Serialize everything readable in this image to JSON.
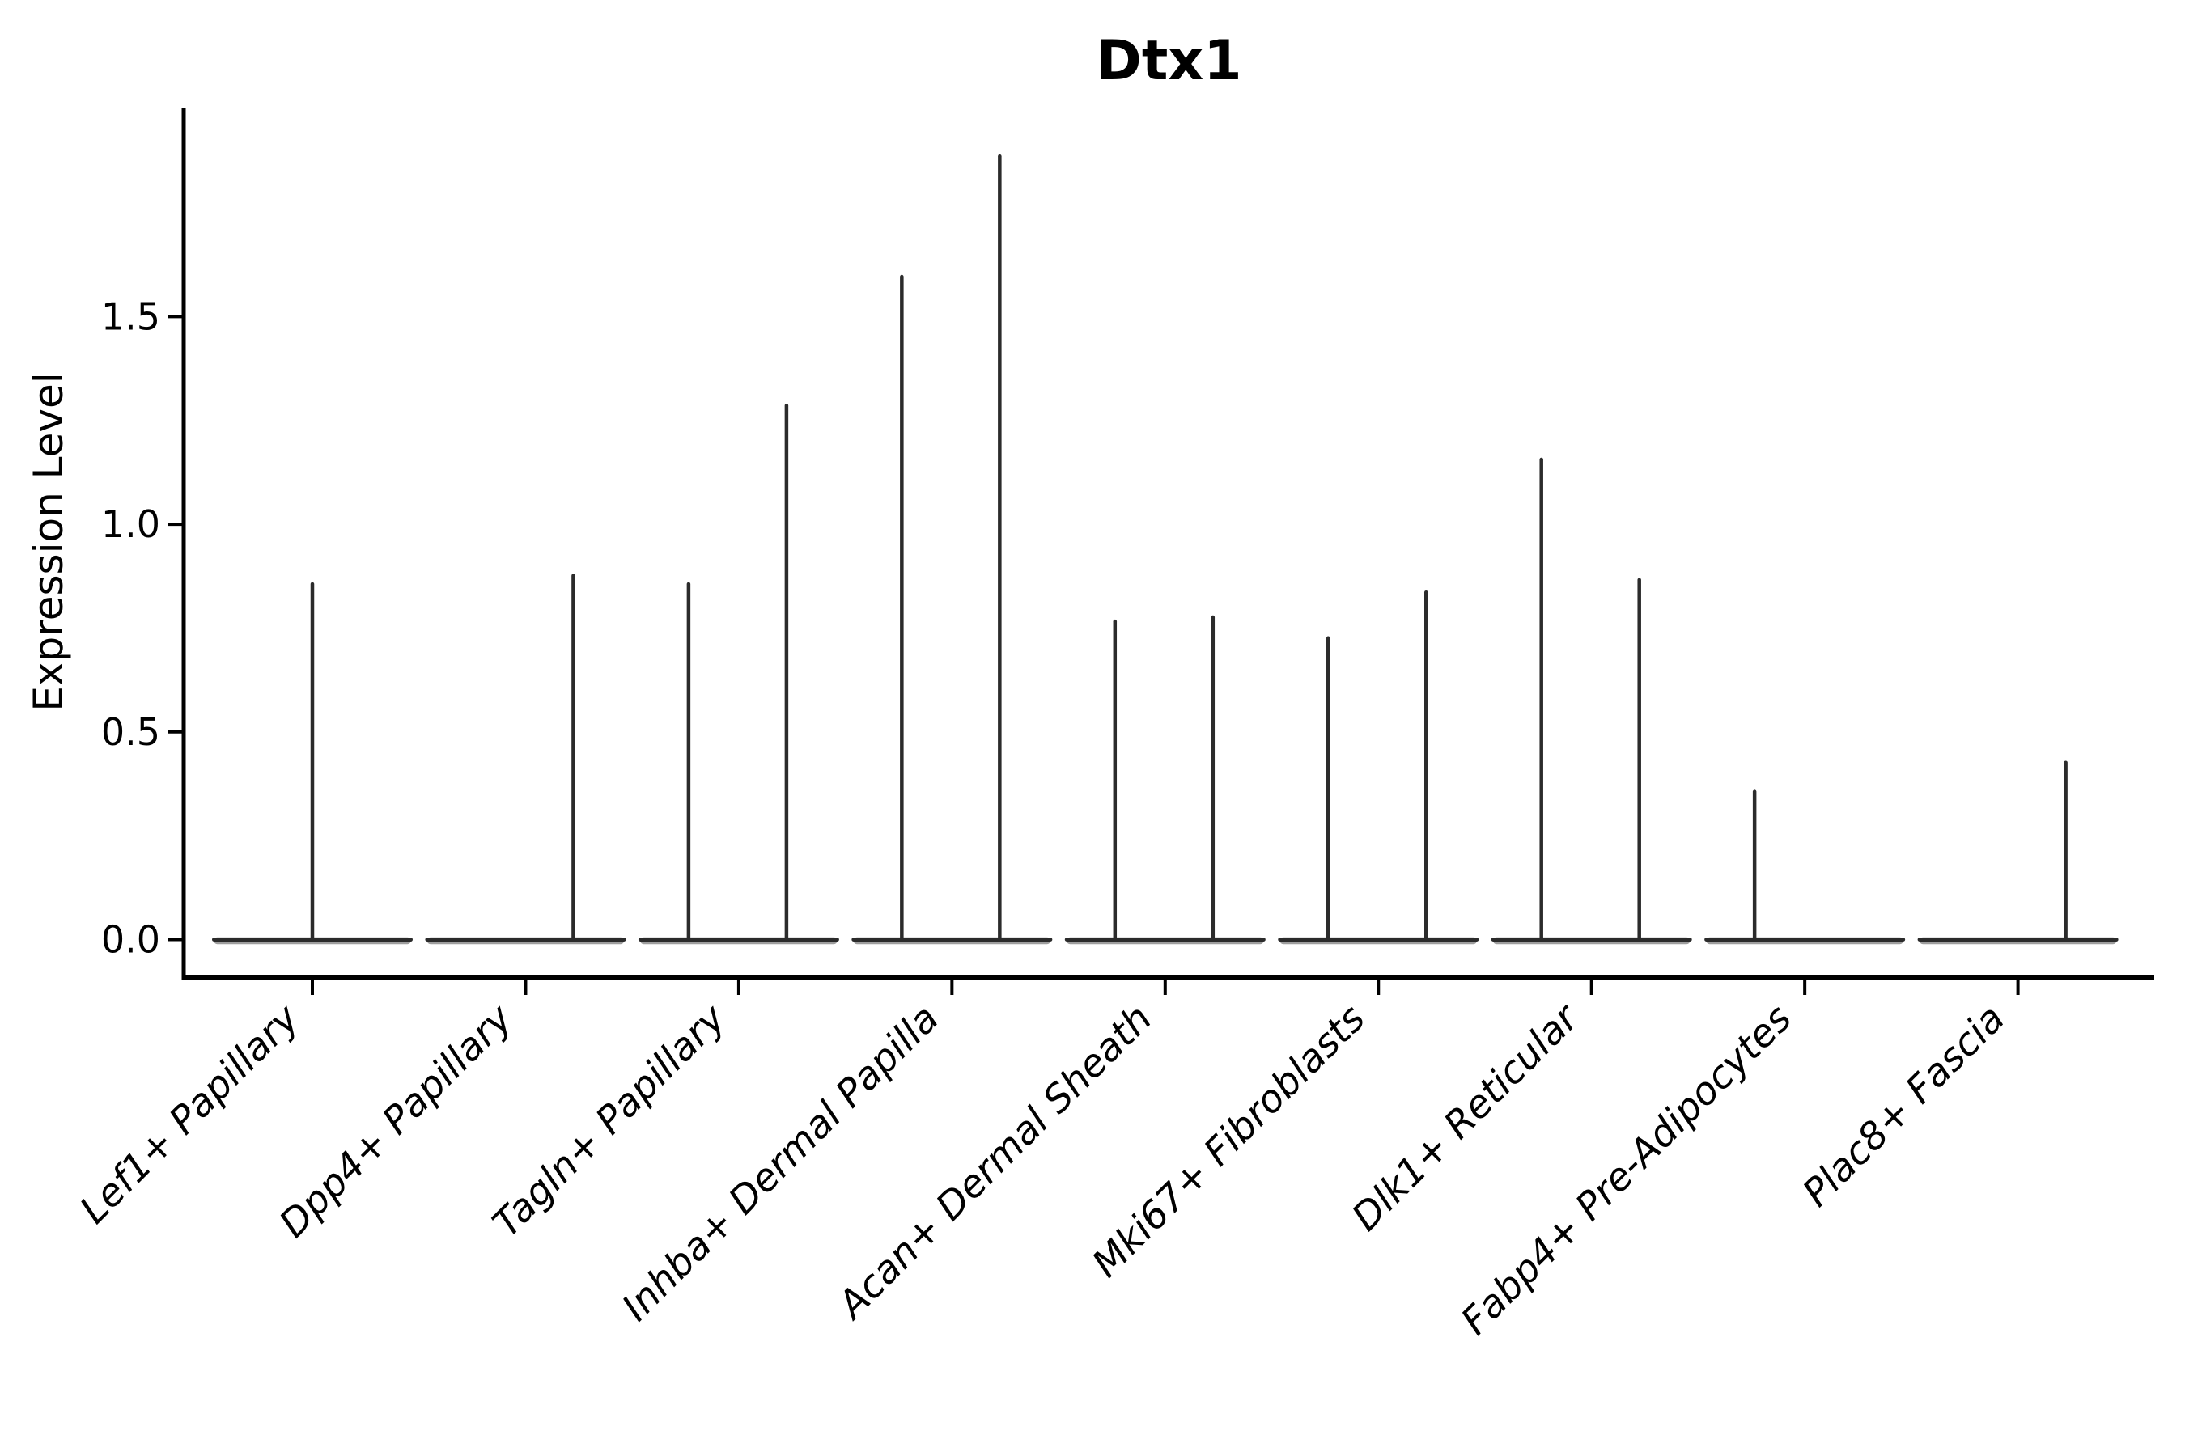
{
  "chart_data": {
    "type": "violin",
    "title": "Dtx1",
    "ylabel": "Expression Level",
    "xlabel": "",
    "ylim": [
      -0.1,
      2.0
    ],
    "yticks": [
      0.0,
      0.5,
      1.0,
      1.5
    ],
    "grid": false,
    "legend": "none",
    "style": "collapsed violins: wide flat base at expression 0 with thin vertical tail spike rising to the max expression value; dark gray strokes on white; x tick labels italic, rotated 45 degrees",
    "categories": [
      "Lef1+ Papillary",
      "Dpp4+ Papillary",
      "Tagln+ Papillary",
      "Inhba+ Dermal Papilla",
      "Acan+ Dermal Sheath",
      "Mki67+ Fibroblasts",
      "Dlk1+ Reticular",
      "Fabp4+ Pre-Adipocytes",
      "Plac8+ Fascia"
    ],
    "violins": [
      {
        "category": "Lef1+ Papillary",
        "spikes": [
          {
            "position": "center",
            "max": 0.86
          }
        ]
      },
      {
        "category": "Dpp4+ Papillary",
        "spikes": [
          {
            "position": "right",
            "max": 0.88
          }
        ]
      },
      {
        "category": "Tagln+ Papillary",
        "spikes": [
          {
            "position": "left",
            "max": 0.86
          },
          {
            "position": "right",
            "max": 1.29
          }
        ]
      },
      {
        "category": "Inhba+ Dermal Papilla",
        "spikes": [
          {
            "position": "left",
            "max": 1.6
          },
          {
            "position": "right",
            "max": 1.89
          }
        ]
      },
      {
        "category": "Acan+ Dermal Sheath",
        "spikes": [
          {
            "position": "left",
            "max": 0.77
          },
          {
            "position": "right",
            "max": 0.78
          }
        ]
      },
      {
        "category": "Mki67+ Fibroblasts",
        "spikes": [
          {
            "position": "left",
            "max": 0.73
          },
          {
            "position": "right",
            "max": 0.84
          }
        ]
      },
      {
        "category": "Dlk1+ Reticular",
        "spikes": [
          {
            "position": "left",
            "max": 1.16
          },
          {
            "position": "right",
            "max": 0.87
          }
        ]
      },
      {
        "category": "Fabp4+ Pre-Adipocytes",
        "spikes": [
          {
            "position": "left",
            "max": 0.36
          }
        ]
      },
      {
        "category": "Plac8+ Fascia",
        "spikes": [
          {
            "position": "right",
            "max": 0.43
          }
        ]
      }
    ],
    "colors": {
      "stroke": "#2b2b2b",
      "base_fringe": "#9e9e9e",
      "axis": "#000000",
      "text": "#000000",
      "background": "#ffffff"
    }
  }
}
